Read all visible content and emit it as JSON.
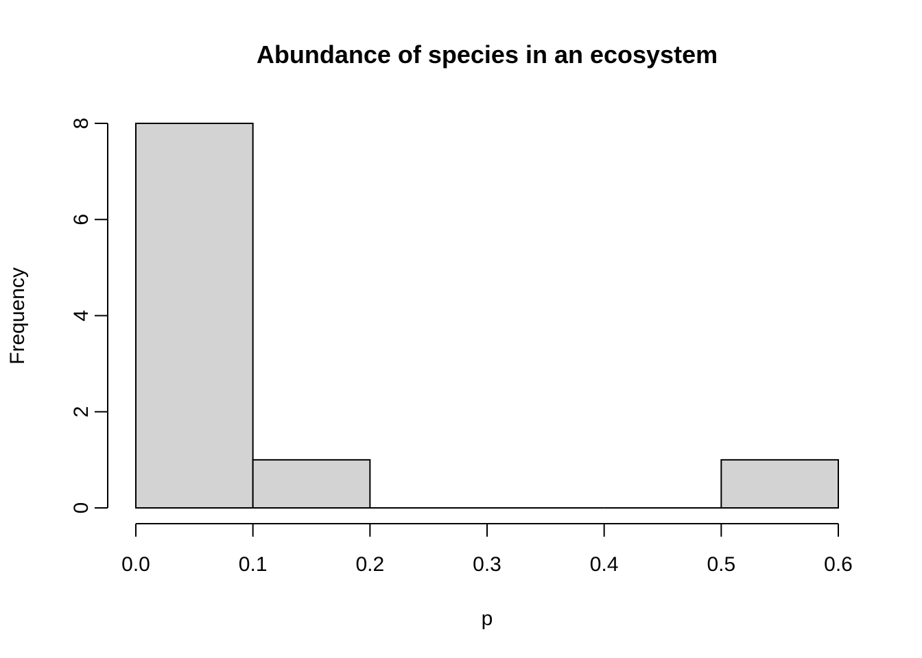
{
  "chart_data": {
    "type": "bar",
    "title": "Abundance of species in an ecosystem",
    "xlabel": "p",
    "ylabel": "Frequency",
    "bins": [
      {
        "start": 0.0,
        "end": 0.1,
        "count": 8
      },
      {
        "start": 0.1,
        "end": 0.2,
        "count": 1
      },
      {
        "start": 0.2,
        "end": 0.3,
        "count": 0
      },
      {
        "start": 0.3,
        "end": 0.4,
        "count": 0
      },
      {
        "start": 0.4,
        "end": 0.5,
        "count": 0
      },
      {
        "start": 0.5,
        "end": 0.6,
        "count": 1
      }
    ],
    "x_ticks": [
      "0.0",
      "0.1",
      "0.2",
      "0.3",
      "0.4",
      "0.5",
      "0.6"
    ],
    "y_ticks": [
      "0",
      "2",
      "4",
      "6",
      "8"
    ],
    "xlim": [
      0.0,
      0.6
    ],
    "ylim": [
      0,
      8
    ],
    "grid": false,
    "bar_color": "#d3d3d3",
    "edge_color": "#000000"
  }
}
